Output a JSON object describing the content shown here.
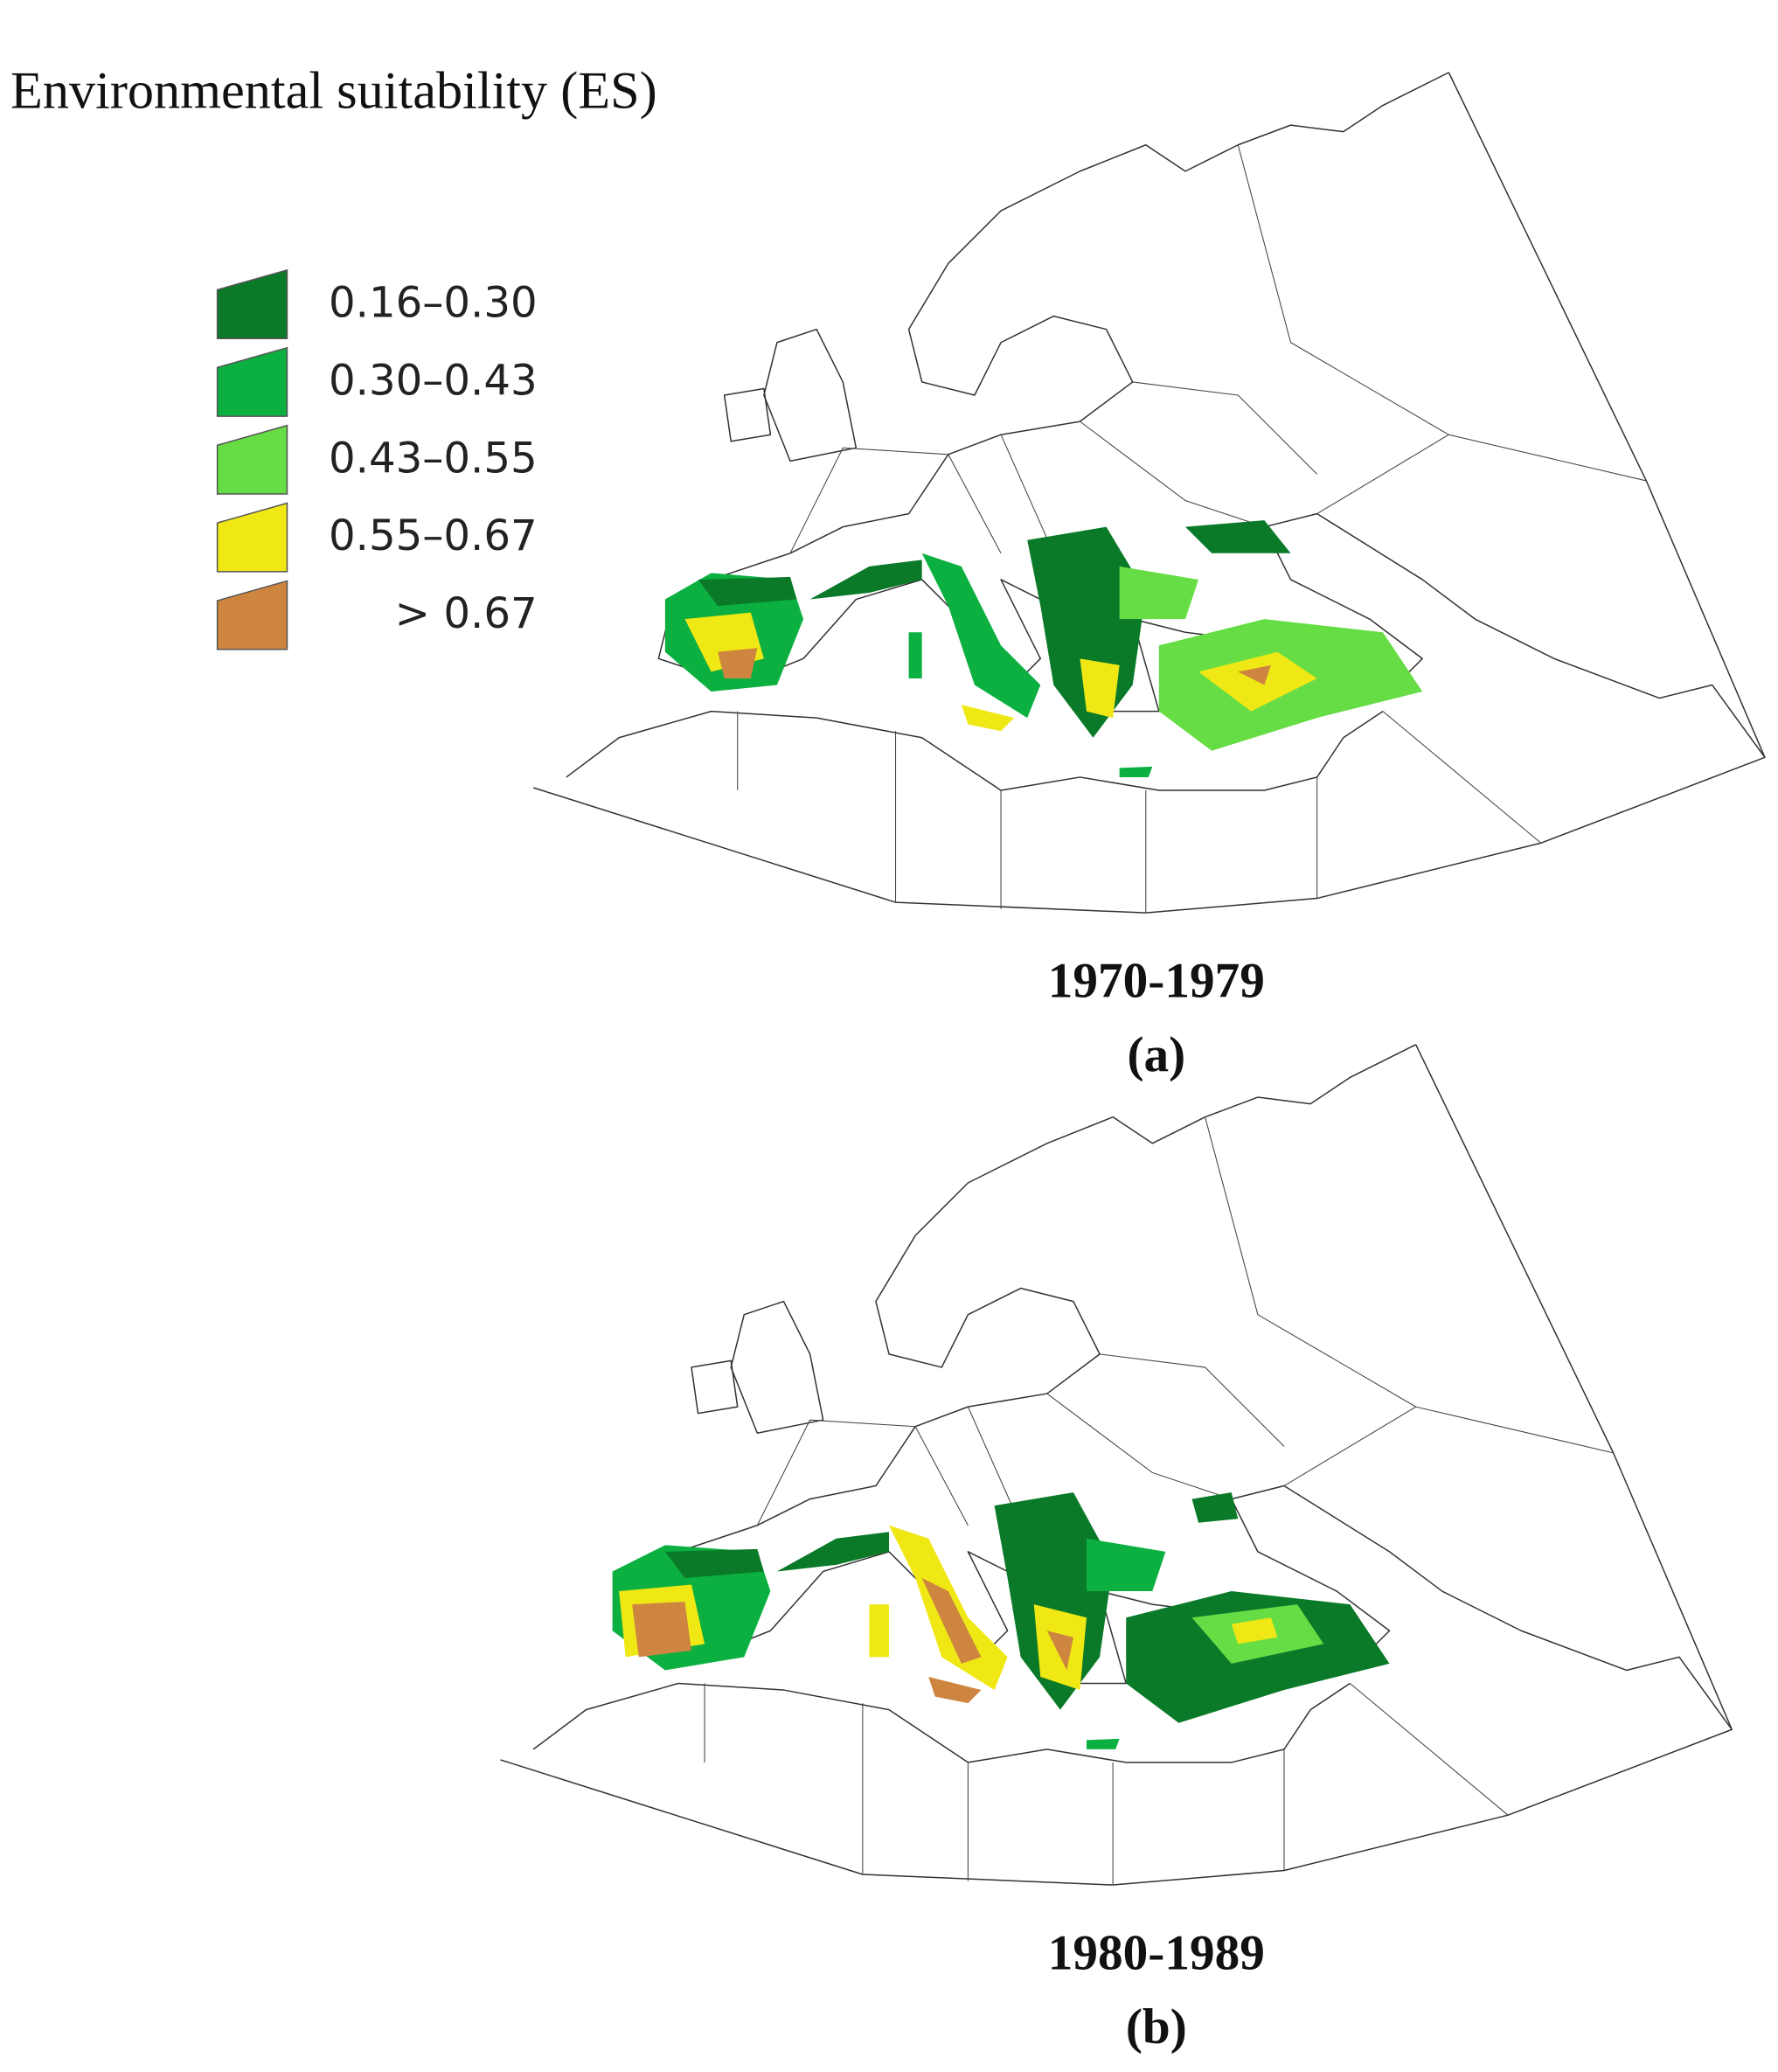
{
  "legend": {
    "title": "Environmental suitability (ES)",
    "items": [
      {
        "label": "0.16–0.30",
        "color": "#0a7a28"
      },
      {
        "label": "0.30–0.43",
        "color": "#0bb040"
      },
      {
        "label": "0.43–0.55",
        "color": "#66dd44"
      },
      {
        "label": "0.55–0.67",
        "color": "#f0e814"
      },
      {
        "label": "> 0.67",
        "color": "#cd853f"
      }
    ]
  },
  "panels": [
    {
      "period": "1970-1979",
      "label": "(a)"
    },
    {
      "period": "1980-1989",
      "label": "(b)"
    }
  ]
}
